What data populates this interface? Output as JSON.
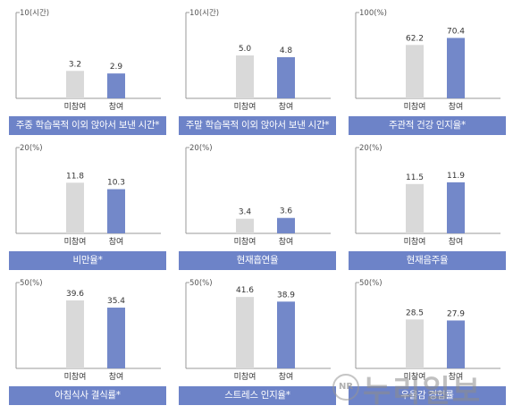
{
  "chart_data": [
    {
      "type": "bar",
      "ylim_label": "10(시간)",
      "ylim": [
        0,
        10
      ],
      "categories": [
        "미참여",
        "참여"
      ],
      "values": [
        3.2,
        2.9
      ],
      "value_labels": [
        "3.2",
        "2.9"
      ],
      "caption": "주중 학습목적 이외 앉아서 보낸 시간*",
      "colors": [
        "#d9d9d9",
        "#7388c9"
      ]
    },
    {
      "type": "bar",
      "ylim_label": "10(시간)",
      "ylim": [
        0,
        10
      ],
      "categories": [
        "미참여",
        "참여"
      ],
      "values": [
        5.0,
        4.8
      ],
      "value_labels": [
        "5.0",
        "4.8"
      ],
      "caption": "주말 학습목적 이외 앉아서 보낸 시간*",
      "colors": [
        "#d9d9d9",
        "#7388c9"
      ]
    },
    {
      "type": "bar",
      "ylim_label": "100(%)",
      "ylim": [
        0,
        100
      ],
      "categories": [
        "미참여",
        "참여"
      ],
      "values": [
        62.2,
        70.4
      ],
      "value_labels": [
        "62.2",
        "70.4"
      ],
      "caption": "주관적 건강 인지율*",
      "colors": [
        "#d9d9d9",
        "#7388c9"
      ]
    },
    {
      "type": "bar",
      "ylim_label": "20(%)",
      "ylim": [
        0,
        20
      ],
      "categories": [
        "미참여",
        "참여"
      ],
      "values": [
        11.8,
        10.3
      ],
      "value_labels": [
        "11.8",
        "10.3"
      ],
      "caption": "비만율*",
      "colors": [
        "#d9d9d9",
        "#7388c9"
      ]
    },
    {
      "type": "bar",
      "ylim_label": "20(%)",
      "ylim": [
        0,
        20
      ],
      "categories": [
        "미참여",
        "참여"
      ],
      "values": [
        3.4,
        3.6
      ],
      "value_labels": [
        "3.4",
        "3.6"
      ],
      "caption": "현재흡연율",
      "colors": [
        "#d9d9d9",
        "#7388c9"
      ]
    },
    {
      "type": "bar",
      "ylim_label": "20(%)",
      "ylim": [
        0,
        20
      ],
      "categories": [
        "미참여",
        "참여"
      ],
      "values": [
        11.5,
        11.9
      ],
      "value_labels": [
        "11.5",
        "11.9"
      ],
      "caption": "현재음주율",
      "colors": [
        "#d9d9d9",
        "#7388c9"
      ]
    },
    {
      "type": "bar",
      "ylim_label": "50(%)",
      "ylim": [
        0,
        50
      ],
      "categories": [
        "미참여",
        "참여"
      ],
      "values": [
        39.6,
        35.4
      ],
      "value_labels": [
        "39.6",
        "35.4"
      ],
      "caption": "아침식사 결식률*",
      "colors": [
        "#d9d9d9",
        "#7388c9"
      ]
    },
    {
      "type": "bar",
      "ylim_label": "50(%)",
      "ylim": [
        0,
        50
      ],
      "categories": [
        "미참여",
        "참여"
      ],
      "values": [
        41.6,
        38.9
      ],
      "value_labels": [
        "41.6",
        "38.9"
      ],
      "caption": "스트레스 인지율*",
      "colors": [
        "#d9d9d9",
        "#7388c9"
      ]
    },
    {
      "type": "bar",
      "ylim_label": "50(%)",
      "ylim": [
        0,
        50
      ],
      "categories": [
        "미참여",
        "참여"
      ],
      "values": [
        28.5,
        27.9
      ],
      "value_labels": [
        "28.5",
        "27.9"
      ],
      "caption": "우울감 경험률",
      "colors": [
        "#d9d9d9",
        "#7388c9"
      ]
    }
  ],
  "watermark": {
    "badge": "NR",
    "text": "누리일보"
  }
}
